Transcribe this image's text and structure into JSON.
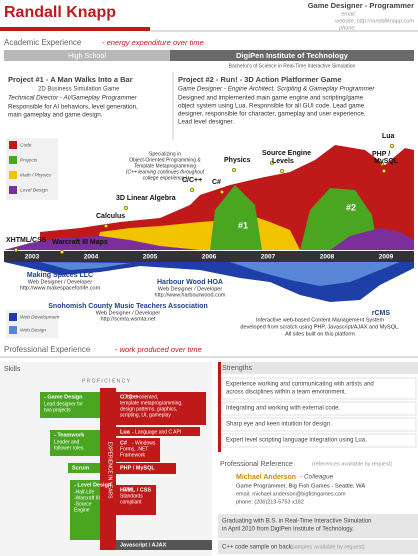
{
  "header": {
    "name": "Randall Knapp",
    "role": "Game Designer - Programmer",
    "email": "email:",
    "website": "website: http://randallknapp.com",
    "phone": "phone:"
  },
  "academic": {
    "title": "Academic Experience",
    "subtitle": "- energy expenditure over time",
    "high_school": "High School",
    "college": "DigiPen Institute of Technology",
    "degree": "Bachelor's of Science in Real-Time Interactive Simulation",
    "projects": [
      {
        "title": "Project #1 - A Man Walks Into a Bar",
        "genre": "2D Business Simulation Game",
        "role": "Technical Director - AI/Gameplay Programmer",
        "description": [
          "Responsible for AI behaviors, level generation,",
          "main gameplay and game design."
        ]
      },
      {
        "title": "Project #2 - Run! - 3D Action Platformer Game",
        "genre": "",
        "role": "Game Designer - Engine Architect, Scripting & Gameplay Programmer",
        "description": [
          "Designed and implemented main game engine and scripting/game",
          "object system using Lua. Responsible for all GUI code. Lead game",
          "designer, responsible for character, gameplay and user experience.",
          "Lead level designer."
        ]
      }
    ],
    "legend": [
      "Code",
      "Projects",
      "Math / Physics",
      "Level Design"
    ],
    "labels": [
      "XHTML/CSS",
      "Warcraft III Maps",
      "Calculus",
      "3D Linear Algebra",
      "C/C++",
      "C#",
      "Physics",
      "Source Engine",
      "Levels",
      "Lua",
      "PHP /",
      "MySQL",
      "#1",
      "#2"
    ],
    "specializing": [
      "Specializing in",
      "Object-Oriented Programming &",
      "Template Metaprogramming",
      "(C++ learning continues throughout",
      "college experience.)"
    ],
    "years": [
      "2003",
      "2004",
      "2005",
      "2006",
      "2007",
      "2008",
      "2009"
    ]
  },
  "professional": {
    "title": "Professional Experience",
    "subtitle": "- work produced over time",
    "legend": [
      "Web Development",
      "Web Design"
    ],
    "clients": [
      {
        "name": "Making Spaces LLC",
        "role": "Web Designer / Developer",
        "url": "http://www.makespaceforlife.com"
      },
      {
        "name": "Harbour Wood HOA",
        "role": "Web Designer / Developer",
        "url": "http://www.harbourwood.com"
      },
      {
        "name": "Snohomish County Music Teachers Association",
        "role": "Web Designer / Developer",
        "url": "http://scmta.wsmta.net"
      }
    ],
    "rcms": {
      "name": "rCMS",
      "description": [
        "Interactive web-based Content Management System",
        "developed from scratch using PHP, Javascript/AJAX and MySQL.",
        "All sites built on this platform"
      ]
    }
  },
  "skills": {
    "title": "Skills",
    "proficiency": "P R O F I C I E N C Y",
    "experience": "EXPERIENCE IN YEARS",
    "left": [
      {
        "name": "- Game Design",
        "detail": [
          "Lead designer for",
          "two projects"
        ]
      },
      {
        "name": "- Teamwork",
        "detail": [
          "Leader and",
          "follower roles"
        ]
      },
      {
        "name": "Scrum",
        "detail": []
      },
      {
        "name": "- Level Design",
        "detail": [
          "-Half-Life",
          "-Warcraft III",
          "-Source",
          "Engine"
        ]
      }
    ],
    "right": [
      {
        "name": "C / C++",
        "detail": [
          "- Object oriented,",
          "template metaprogramming,",
          "design patterns, graphics,",
          "scripting, UI, gameplay"
        ]
      },
      {
        "name": "Lua",
        "detail": [
          "- Language and C API"
        ]
      },
      {
        "name": "C#",
        "detail": [
          "- Windows",
          "Forms, .NET",
          "Framework"
        ]
      },
      {
        "name": "PHP / MySQL",
        "detail": []
      },
      {
        "name": "HTML / CSS",
        "detail": [
          "- W3",
          "Standards",
          "compliant"
        ]
      },
      {
        "name": "Javascript / AJAX",
        "detail": []
      }
    ]
  },
  "strengths": {
    "title": "Strengths",
    "items": [
      [
        "Experience working and communicating with artists and",
        "across disciplines within a team environment."
      ],
      [
        "Integrating and working with external code."
      ],
      [
        "Sharp eye and keen intuition for design."
      ],
      [
        "Expert level scripting language integration using Lua."
      ]
    ]
  },
  "reference": {
    "title": "Professional Reference",
    "note": "(references available by request)",
    "name": "Michael Anderson",
    "relation": "- Colleague",
    "job": "Game Programmer, Big Fish Games - Seattle, WA",
    "email": "email: michael.anderson@bigfishgames.com",
    "phone": "phone: (206)213-5753 x182"
  },
  "footer": {
    "graduation": [
      "Graduating with B.S. in Real-Time Interactive Simulation",
      "in April 2010 from DigiPen Institute of Technology."
    ],
    "code": "C++ code sample on back.",
    "samples": "(samples available by request)"
  }
}
